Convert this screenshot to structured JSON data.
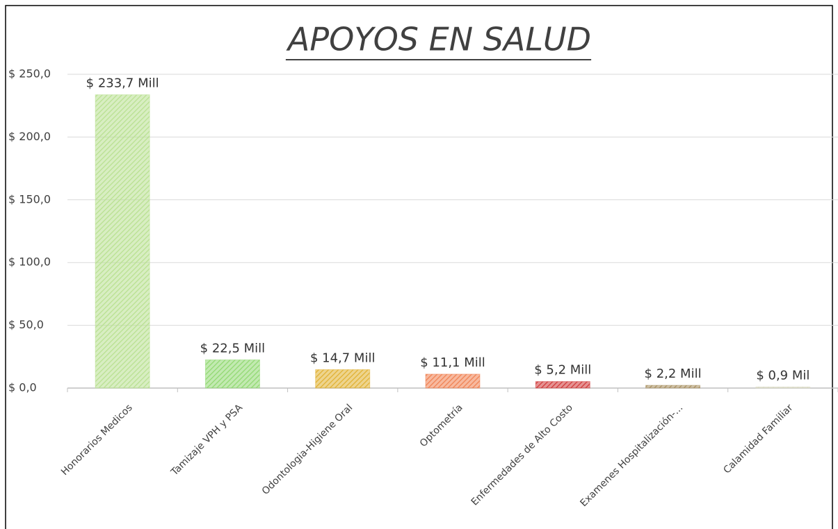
{
  "chart_data": {
    "type": "bar",
    "title": "APOYOS EN SALUD",
    "categories": [
      "Honorarios Medicos",
      "Tamizaje VPH y PSA",
      "Odontologia-Higiene Oral",
      "Optometría",
      "Enfermedades de Alto Costo",
      "Examenes Hospitalización-...",
      "Calamidad Familiar"
    ],
    "values": [
      233.7,
      22.5,
      14.7,
      11.1,
      5.2,
      2.2,
      0.9
    ],
    "value_labels": [
      "$ 233,7 Mill",
      "$ 22,5 Mill",
      "$ 14,7 Mill",
      "$ 11,1 Mill",
      "$ 5,2 Mill",
      "$ 2,2 Mill",
      "$ 0,9 Mil"
    ],
    "colors": [
      "#b8e090",
      "#90d870",
      "#e0b030",
      "#f08050",
      "#d03838",
      "#a89060",
      "#d8d8c0"
    ],
    "ylim": [
      0,
      250
    ],
    "yticks": [
      {
        "value": 0,
        "label": "$ 0,0"
      },
      {
        "value": 50,
        "label": "$ 50,0"
      },
      {
        "value": 100,
        "label": "$ 100,0"
      },
      {
        "value": 150,
        "label": "$ 150,0"
      },
      {
        "value": 200,
        "label": "$ 200,0"
      },
      {
        "value": 250,
        "label": "$ 250,0"
      }
    ],
    "grid": true
  }
}
